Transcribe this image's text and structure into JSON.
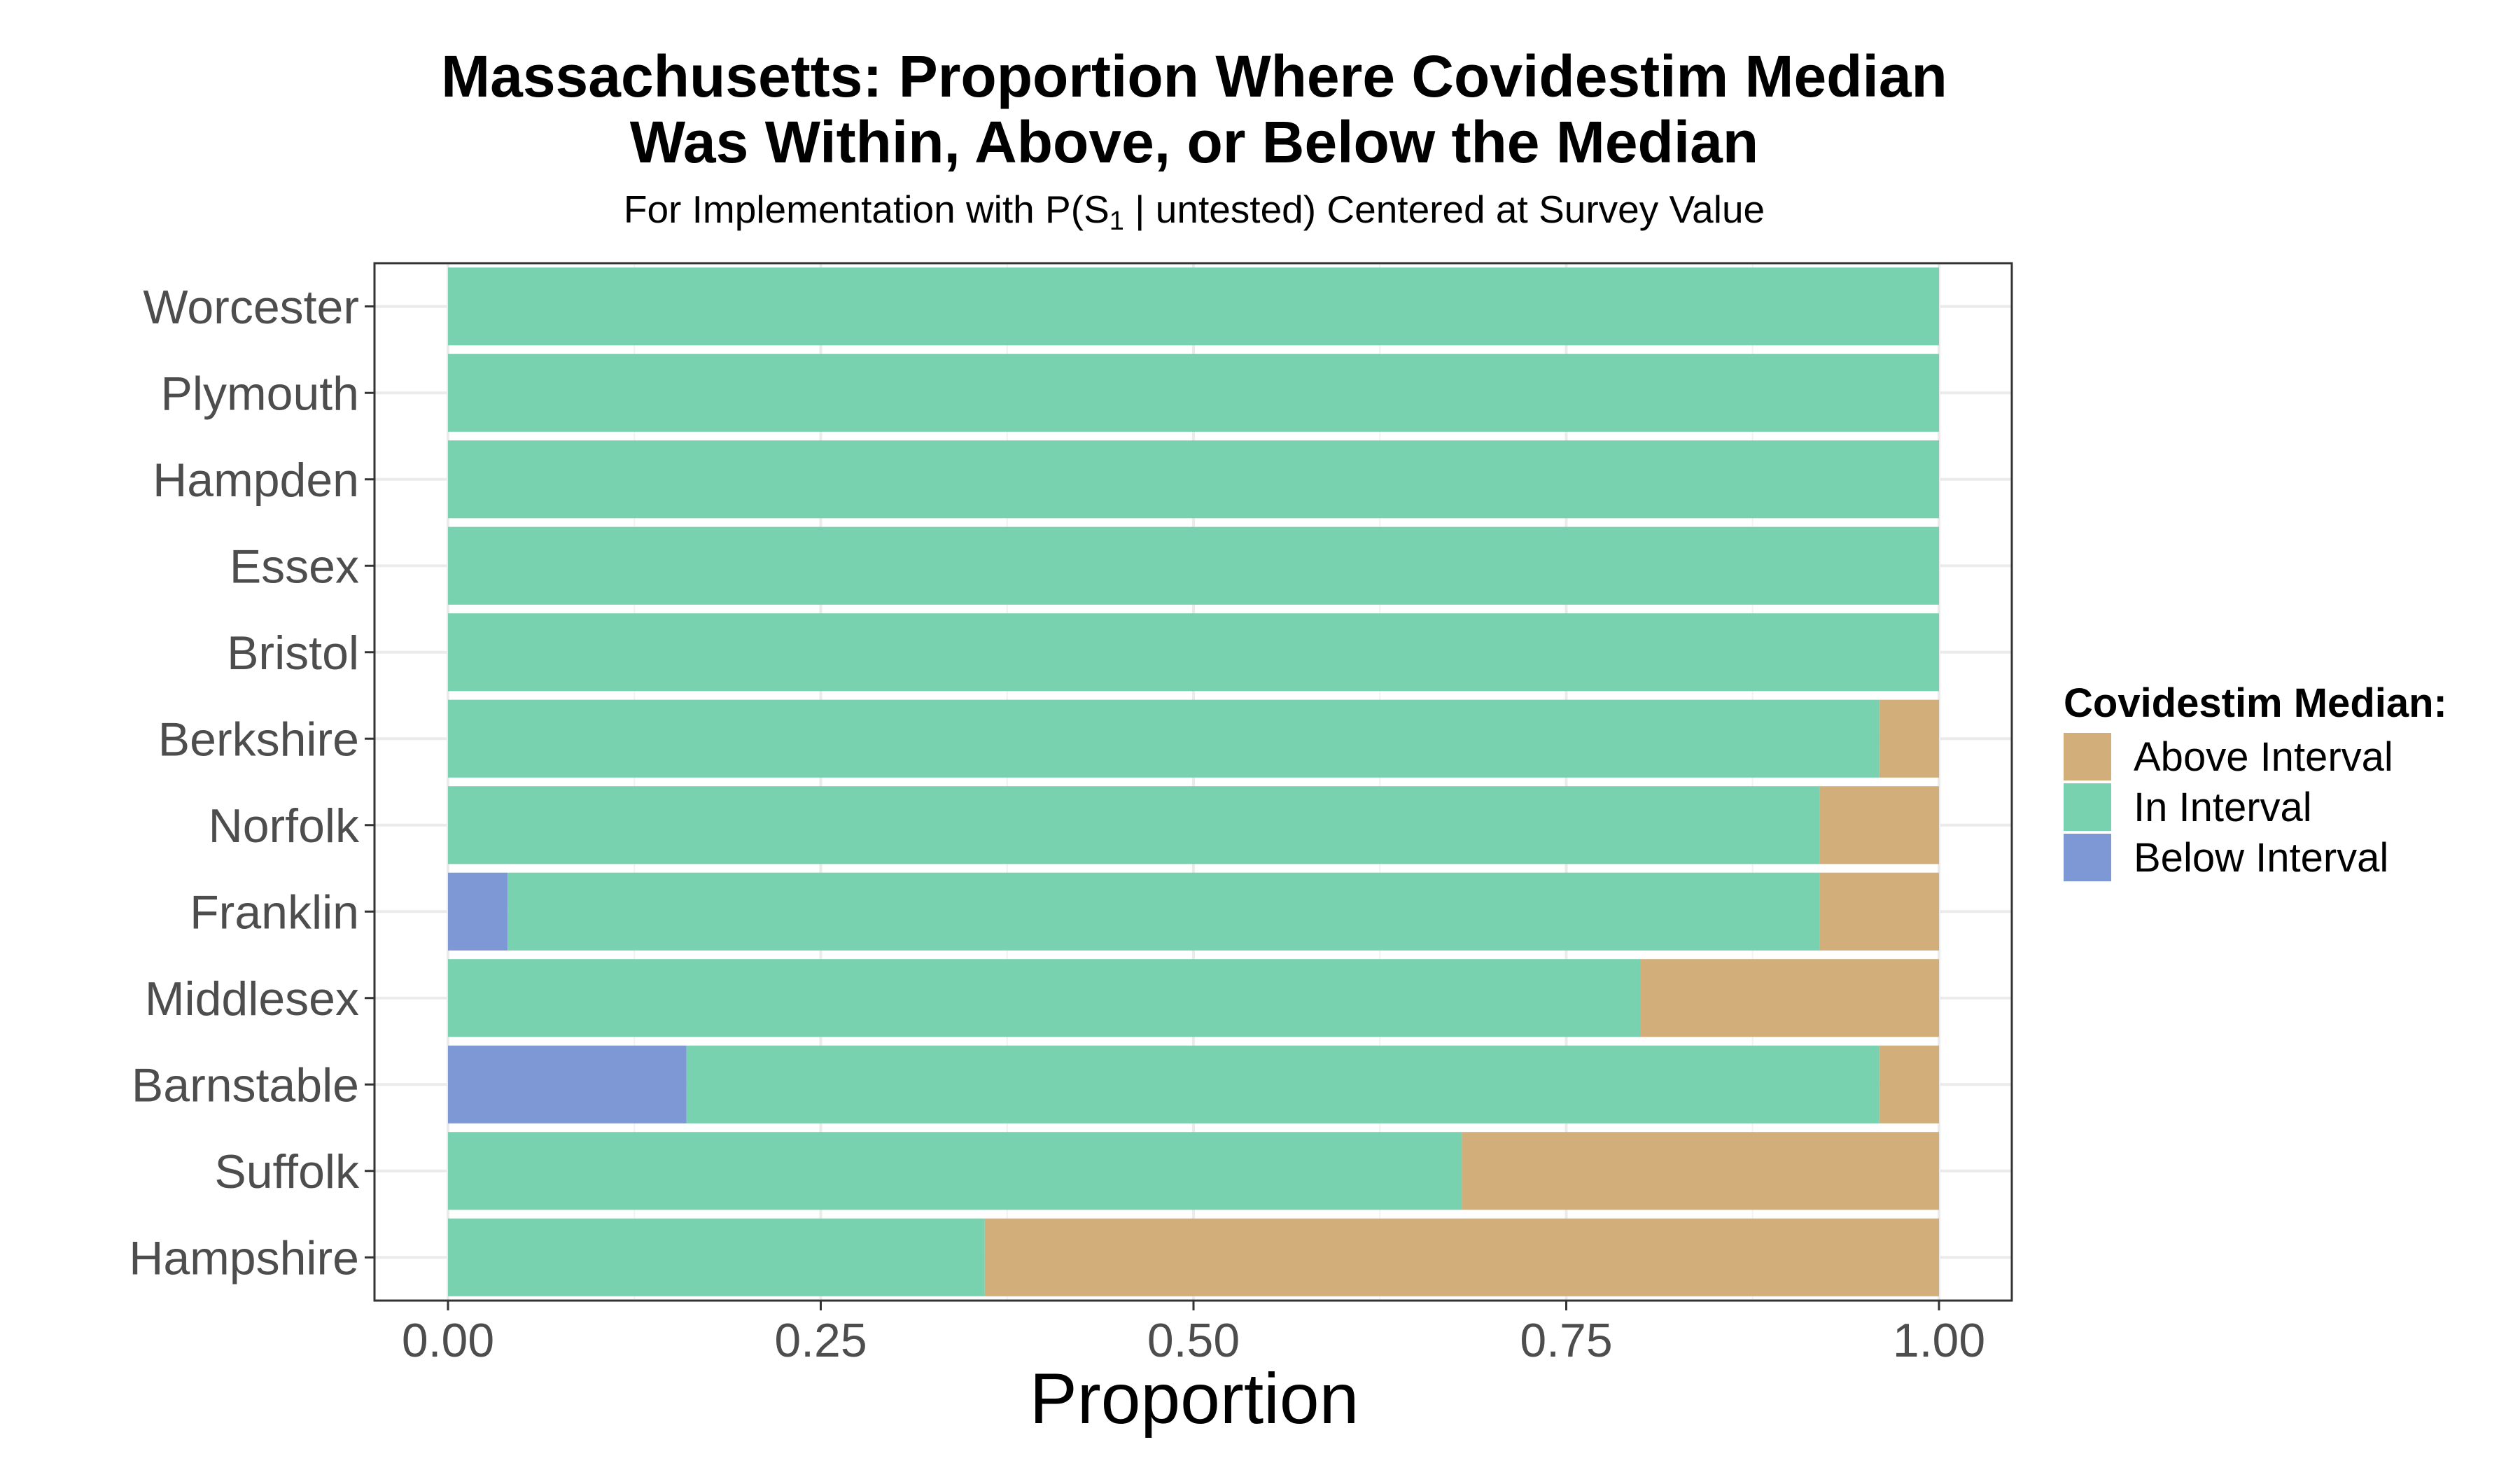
{
  "chart_data": {
    "type": "bar",
    "orientation": "horizontal",
    "stacked": true,
    "title_line1": "Massachusetts: Proportion Where Covidestim Median",
    "title_line2": "Was Within, Above, or Below the Median",
    "subtitle_prefix": "For Implementation with P",
    "subtitle_symbol": "S",
    "subtitle_subscript": "1",
    "subtitle_given": "untested",
    "subtitle_suffix": "Centered at Survey Value",
    "xlabel": "Proportion",
    "xlim": [
      0,
      1
    ],
    "xticks": [
      "0.00",
      "0.25",
      "0.50",
      "0.75",
      "1.00"
    ],
    "xtick_values": [
      0,
      0.25,
      0.5,
      0.75,
      1.0
    ],
    "grid": true,
    "legend_position": "right",
    "legend_title": "Covidestim Median:",
    "categories": [
      "Worcester",
      "Plymouth",
      "Hampden",
      "Essex",
      "Bristol",
      "Berkshire",
      "Norfolk",
      "Franklin",
      "Middlesex",
      "Barnstable",
      "Suffolk",
      "Hampshire"
    ],
    "series": [
      {
        "name": "Above Interval",
        "color": "#D2AE7A",
        "values": [
          0,
          0,
          0,
          0,
          0,
          0.04,
          0.08,
          0.08,
          0.2,
          0.04,
          0.32,
          0.64
        ]
      },
      {
        "name": "In Interval",
        "color": "#78D2AF",
        "values": [
          1.0,
          1.0,
          1.0,
          1.0,
          1.0,
          0.96,
          0.92,
          0.88,
          0.8,
          0.8,
          0.68,
          0.36
        ]
      },
      {
        "name": "Below Interval",
        "color": "#7D98D4",
        "values": [
          0,
          0,
          0,
          0,
          0,
          0,
          0,
          0.04,
          0,
          0.16,
          0,
          0
        ]
      }
    ]
  }
}
